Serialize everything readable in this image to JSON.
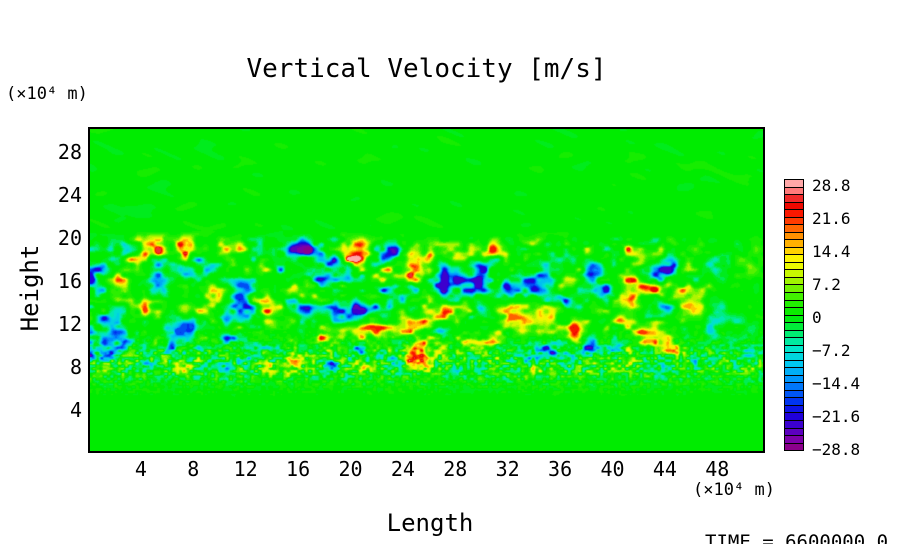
{
  "title": "Vertical Velocity [m/s]",
  "axes": {
    "x_label": "Length",
    "y_label": "Height",
    "x_unit_label": "(×10⁴ m)",
    "y_unit_label": "(×10⁴ m)",
    "x_ticks": [
      4,
      8,
      12,
      16,
      20,
      24,
      28,
      32,
      36,
      40,
      44,
      48
    ],
    "y_ticks": [
      28,
      24,
      20,
      16,
      12,
      8,
      4
    ]
  },
  "colorbar": {
    "tick_labels": [
      "28.8",
      "21.6",
      "14.4",
      "7.2",
      "0",
      "−7.2",
      "−14.4",
      "−21.6",
      "−28.8"
    ],
    "n_segments": 36
  },
  "footer": {
    "time_label": "TIME = 6600000.0"
  },
  "chart_data": {
    "type": "heatmap",
    "title": "Vertical Velocity [m/s]",
    "xlabel": "Length",
    "ylabel": "Height",
    "x_unit": "×10⁴ m",
    "y_unit": "×10⁴ m",
    "xlim": [
      0,
      51.5
    ],
    "ylim": [
      0,
      30.3
    ],
    "value_unit": "m/s",
    "value_range": [
      -28.8,
      28.8
    ],
    "colorbar_ticks": [
      28.8,
      21.6,
      14.4,
      7.2,
      0,
      -7.2,
      -14.4,
      -21.6,
      -28.8
    ],
    "contour_interval": 1.6,
    "n_levels": 36,
    "background_value": 0,
    "legend_position": "right",
    "grid": false,
    "field": {
      "description": "Uniform zero-velocity (bright green) background with a horizontal turbulent layer between heights ~7 and ~20 (x10^4 m) containing compact strong updraft cells (red/orange, up to +28.8 m/s) and downdraft cells (dark blue, down to -28.8 m/s) amid weaker yellow-green/cyan mottling; fine weak speckle at the layer base (heights ~6.5-10); nearly uniform green with faint diagonal wave streaks above height 20; activity strongest for lengths ~8-42, calmer at far right.",
      "band_height_range": [
        7,
        20
      ],
      "band_core_range": [
        9.2,
        18.8
      ],
      "speckle_height_range": [
        6.5,
        10
      ],
      "peak_amplitude": 28.8,
      "seed": 7
    },
    "colormap_stops": [
      [
        0.0,
        "#8B008B"
      ],
      [
        0.035,
        "#7A00B0"
      ],
      [
        0.07,
        "#4B00C8"
      ],
      [
        0.125,
        "#1500E0"
      ],
      [
        0.17,
        "#0033F0"
      ],
      [
        0.25,
        "#0090FF"
      ],
      [
        0.315,
        "#00C8F0"
      ],
      [
        0.375,
        "#00E8C8"
      ],
      [
        0.43,
        "#00EE70"
      ],
      [
        0.47,
        "#00EC20"
      ],
      [
        0.5,
        "#00EC00"
      ],
      [
        0.56,
        "#30F000"
      ],
      [
        0.625,
        "#9CF400"
      ],
      [
        0.68,
        "#E8FA00"
      ],
      [
        0.72,
        "#FFF500"
      ],
      [
        0.75,
        "#FFC800"
      ],
      [
        0.8,
        "#FF9000"
      ],
      [
        0.845,
        "#FF5000"
      ],
      [
        0.875,
        "#FF1E00"
      ],
      [
        0.93,
        "#E80000"
      ],
      [
        0.965,
        "#FF7070"
      ],
      [
        1.0,
        "#FFA8A8"
      ]
    ]
  }
}
